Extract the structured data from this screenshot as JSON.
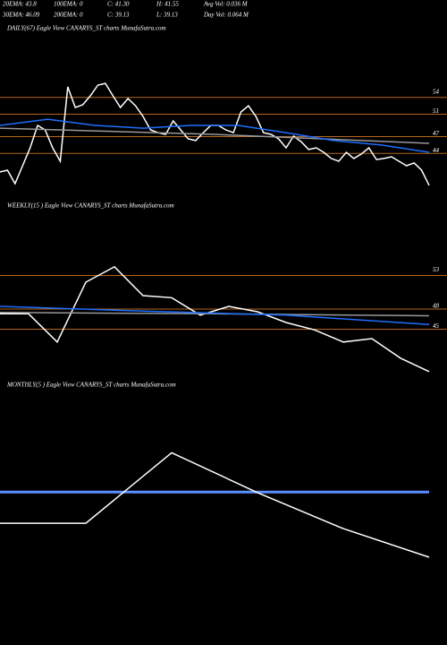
{
  "header": {
    "stats": [
      [
        "20EMA: 43.8",
        "100EMA: 0",
        "C: 41.30",
        "H: 41.55",
        "Avg Vol: 0.036  M"
      ],
      [
        "30EMA: 46.09",
        "200EMA: 0",
        "C: 39.13",
        "L: 39.13",
        "Day Vol: 0.064  M"
      ]
    ]
  },
  "chart_data": [
    {
      "type": "line",
      "title": "DAILY(67) Eagle  View  CANARYS_ST charts MunafaSutra.com",
      "ylim": [
        37,
        65
      ],
      "yticks": [
        54,
        51,
        47,
        44
      ],
      "level_color": "#b5651d",
      "series": [
        {
          "color": "#ffffff",
          "values": [
            40.7,
            41.0,
            38.6,
            41.8,
            45.0,
            49.0,
            48.2,
            45.0,
            42.6,
            55.9,
            52.2,
            52.7,
            54.3,
            56.2,
            56.5,
            54.3,
            52.2,
            53.8,
            52.5,
            50.6,
            48.2,
            47.7,
            47.4,
            49.8,
            48.2,
            46.6,
            46.3,
            47.7,
            49.0,
            49.0,
            48.2,
            47.7,
            51.4,
            52.5,
            50.6,
            47.7,
            47.4,
            46.6,
            45.0,
            47.1,
            46.1,
            44.7,
            45.0,
            44.2,
            43.1,
            42.6,
            44.2,
            43.1,
            43.9,
            45.0,
            42.9,
            43.1,
            43.4,
            42.6,
            41.8,
            42.3,
            41.0,
            38.3
          ]
        },
        {
          "color": "#999999",
          "values": [
            48.5,
            47.4,
            45.8
          ]
        },
        {
          "color": "#1e6fff",
          "values": [
            49.0,
            50.1,
            49.0,
            48.5,
            49.0,
            49.0,
            47.7,
            46.3,
            45.5,
            44.2
          ]
        }
      ]
    },
    {
      "type": "line",
      "title": "WEEKLY(15                )  Eagle  View  CANARYS_ST charts MunafaSutra.com",
      "ylim": [
        36,
        64
      ],
      "yticks": [
        53,
        48,
        45
      ],
      "level_color": "#b5651d",
      "series": [
        {
          "color": "#ffffff",
          "values": [
            47.3,
            47.3,
            43.1,
            52.0,
            54.3,
            50.0,
            49.7,
            47.1,
            48.4,
            47.6,
            46.0,
            44.9,
            43.1,
            43.6,
            40.7,
            38.7
          ]
        },
        {
          "color": "#999999",
          "values": [
            47.5,
            47.3,
            47.0
          ]
        },
        {
          "color": "#1e6fff",
          "values": [
            48.4,
            47.7,
            47.1,
            45.7
          ]
        }
      ]
    },
    {
      "type": "line",
      "title": "MONTHLY(5                )  Eagle  View  CANARYS_ST charts MunafaSutra.com",
      "ylim": [
        30,
        65
      ],
      "series": [
        {
          "color": "#5b8fff",
          "values": [
            50.3,
            50.3
          ]
        },
        {
          "color": "#ffffff",
          "values": [
            45.6,
            45.6,
            56.2,
            50.2,
            44.8,
            40.5
          ]
        }
      ]
    }
  ]
}
